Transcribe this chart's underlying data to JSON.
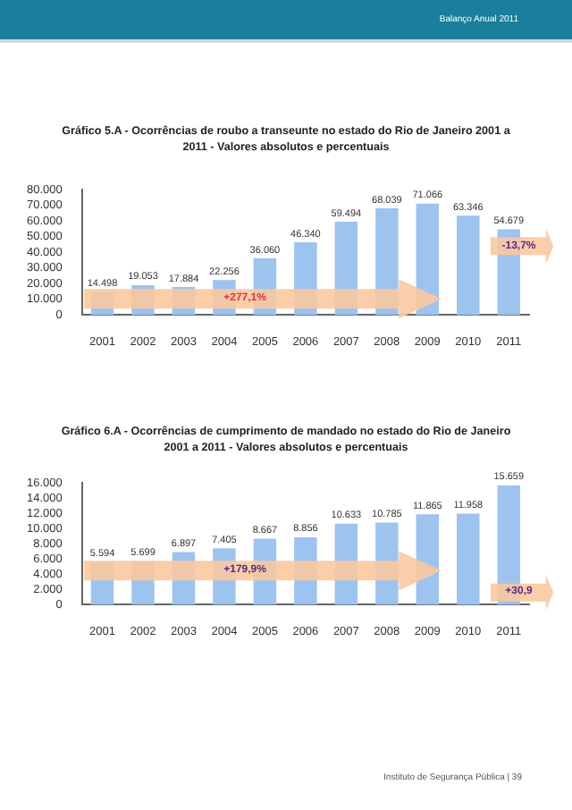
{
  "chart_data": [
    {
      "type": "bar",
      "title": "Gráfico 5.A - Ocorrências de roubo a transeunte no estado do Rio de Janeiro 2001 a 2011 - Valores absolutos e percentuais",
      "categories": [
        "2001",
        "2002",
        "2003",
        "2004",
        "2005",
        "2006",
        "2007",
        "2008",
        "2009",
        "2010",
        "2011"
      ],
      "values": [
        14498,
        19053,
        17884,
        22256,
        36060,
        46340,
        59494,
        68039,
        71066,
        63346,
        54679
      ],
      "value_labels": [
        "14.498",
        "19.053",
        "17.884",
        "22.256",
        "36.060",
        "46.340",
        "59.494",
        "68.039",
        "71.066",
        "63.346",
        "54.679"
      ],
      "color": "#9dc3ef",
      "ylim": [
        0,
        80000
      ],
      "yticks": [
        0,
        {
          "value": 10000,
          "label": "10.000"
        },
        {
          "value": 20000,
          "label": "20.000"
        },
        {
          "value": 30000,
          "label": "30.000"
        },
        {
          "value": 40000,
          "label": "40.000"
        },
        {
          "value": 50000,
          "label": "50.000"
        },
        {
          "value": 60000,
          "label": "60.000"
        },
        {
          "value": 70000,
          "label": "70.000"
        },
        {
          "value": 80000,
          "label": "80.000"
        }
      ],
      "annotations": [
        "+277,1%",
        "-13,7%",
        "Balanço Anual 2011"
      ]
    },
    {
      "type": "bar",
      "title": "Gráfico 6.A - Ocorrências de cumprimento de mandado no estado do Rio de Janeiro 2001 a 2011 - Valores absolutos e percentuais",
      "categories": [
        "2001",
        "2002",
        "2003",
        "2004",
        "2005",
        "2006",
        "2007",
        "2008",
        "2009",
        "2010",
        "2011"
      ],
      "values": [
        5594,
        5699,
        6897,
        7405,
        8667,
        8856,
        10633,
        10785,
        11865,
        11958,
        15659
      ],
      "value_labels": [
        "5.594",
        "5.699",
        "6.897",
        "7.405",
        "8.667",
        "8.856",
        "10.633",
        "10.785",
        "11.865",
        "11.958",
        "15.659"
      ],
      "color": "#9dc3ef",
      "ylim": [
        0,
        16000
      ],
      "yticks": [
        0,
        {
          "value": 2000,
          "label": "2.000"
        },
        {
          "value": 4000,
          "label": "4.000"
        },
        {
          "value": 6000,
          "label": "6.000"
        },
        {
          "value": 8000,
          "label": "8.000"
        },
        {
          "value": 10000,
          "label": "10.000"
        },
        {
          "value": 12000,
          "label": "12.000"
        },
        {
          "value": 14000,
          "label": "14.000"
        },
        {
          "value": 16000,
          "label": "16.000"
        }
      ],
      "annotations": [
        "+179,9%",
        "+30,9",
        "Instituto de Segurança Pública  |  39"
      ]
    }
  ]
}
